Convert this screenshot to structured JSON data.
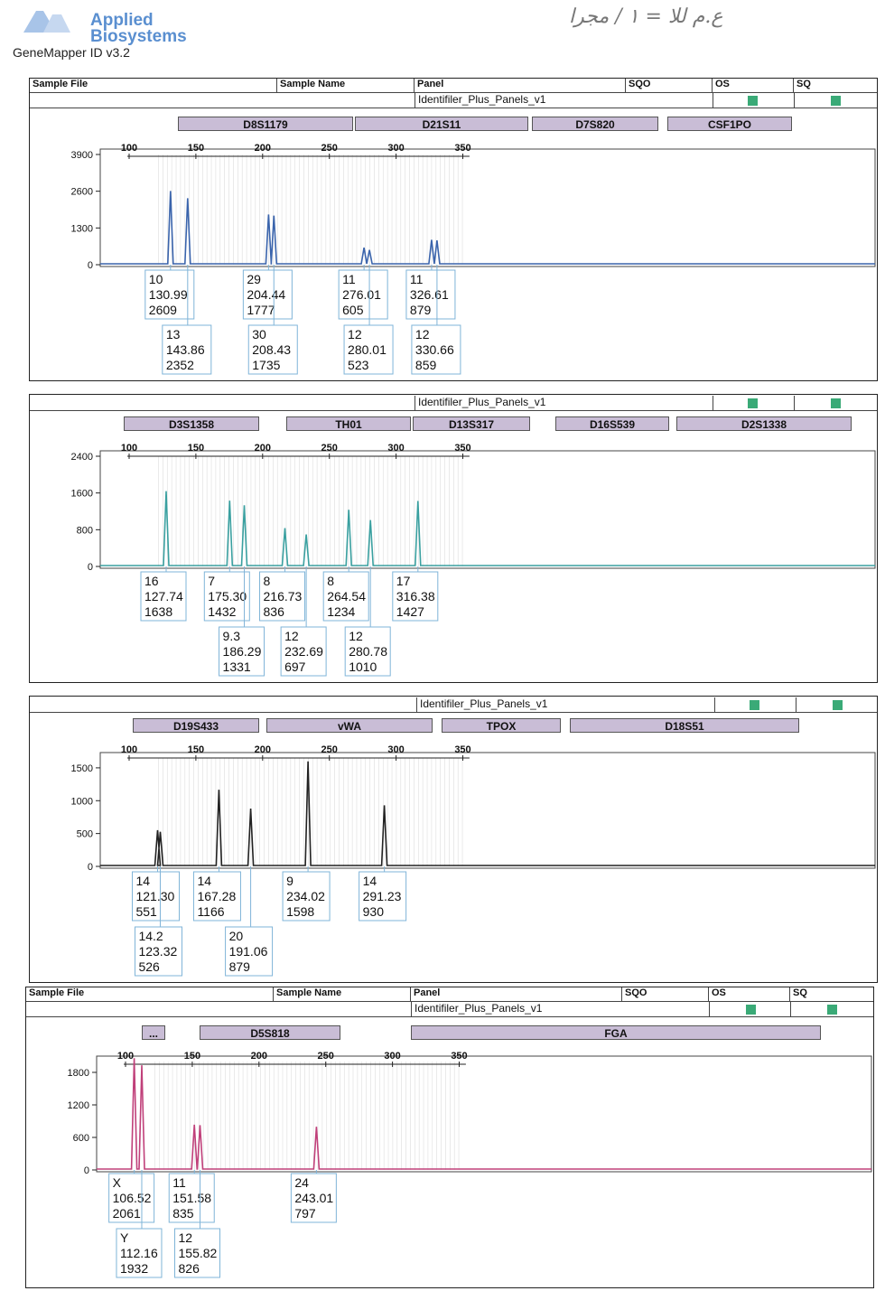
{
  "brand": {
    "line1": "Applied",
    "line2": "Biosystems",
    "product": "GeneMapper ID v3.2"
  },
  "header_labels": {
    "sample_file": "Sample File",
    "sample_name": "Sample Name",
    "panel": "Panel",
    "sqo": "SQO",
    "os": "OS",
    "sq": "SQ"
  },
  "panel_name": "Identifiler_Plus_Panels_v1",
  "flag_color": "#3aaa77",
  "chart_data": [
    {
      "type": "line",
      "channel": "blue",
      "color": "#3a64ac",
      "xlim": [
        100,
        360
      ],
      "x_ticks": [
        100,
        150,
        200,
        250,
        300,
        350
      ],
      "ylim": [
        0,
        3900
      ],
      "y_ticks": [
        0,
        1300,
        2600,
        3900
      ],
      "markers": [
        "D8S1179",
        "D21S11",
        "D7S820",
        "CSF1PO"
      ],
      "peaks": [
        {
          "allele": "10",
          "size": 130.99,
          "height": 2609
        },
        {
          "allele": "13",
          "size": 143.86,
          "height": 2352
        },
        {
          "allele": "29",
          "size": 204.44,
          "height": 1777
        },
        {
          "allele": "30",
          "size": 208.43,
          "height": 1735
        },
        {
          "allele": "11",
          "size": 276.01,
          "height": 605
        },
        {
          "allele": "12",
          "size": 280.01,
          "height": 523
        },
        {
          "allele": "11",
          "size": 326.61,
          "height": 879
        },
        {
          "allele": "12",
          "size": 330.66,
          "height": 859
        }
      ]
    },
    {
      "type": "line",
      "channel": "green",
      "color": "#3aa0a0",
      "xlim": [
        100,
        360
      ],
      "x_ticks": [
        100,
        150,
        200,
        250,
        300,
        350
      ],
      "ylim": [
        0,
        2400
      ],
      "y_ticks": [
        0,
        800,
        1600,
        2400
      ],
      "markers": [
        "D3S1358",
        "TH01",
        "D13S317",
        "D16S539",
        "D2S1338"
      ],
      "peaks": [
        {
          "allele": "16",
          "size": 127.74,
          "height": 1638
        },
        {
          "allele": "7",
          "size": 175.3,
          "height": 1432
        },
        {
          "allele": "9.3",
          "size": 186.29,
          "height": 1331
        },
        {
          "allele": "8",
          "size": 216.73,
          "height": 836
        },
        {
          "allele": "12",
          "size": 232.69,
          "height": 697
        },
        {
          "allele": "8",
          "size": 264.54,
          "height": 1234
        },
        {
          "allele": "12",
          "size": 280.78,
          "height": 1010
        },
        {
          "allele": "17",
          "size": 316.38,
          "height": 1427
        }
      ]
    },
    {
      "type": "line",
      "channel": "yellow",
      "color": "#222222",
      "xlim": [
        100,
        360
      ],
      "x_ticks": [
        100,
        150,
        200,
        250,
        300,
        350
      ],
      "ylim": [
        0,
        1650
      ],
      "y_ticks": [
        0,
        500,
        1000,
        1500
      ],
      "markers": [
        "D19S433",
        "vWA",
        "TPOX",
        "D18S51"
      ],
      "peaks": [
        {
          "allele": "14",
          "size": 121.3,
          "height": 551
        },
        {
          "allele": "14.2",
          "size": 123.32,
          "height": 526
        },
        {
          "allele": "14",
          "size": 167.28,
          "height": 1166
        },
        {
          "allele": "20",
          "size": 191.06,
          "height": 879
        },
        {
          "allele": "9",
          "size": 234.02,
          "height": 1598
        },
        {
          "allele": "14",
          "size": 291.23,
          "height": 930
        }
      ]
    },
    {
      "type": "line",
      "channel": "red",
      "color": "#c0407a",
      "xlim": [
        100,
        360
      ],
      "x_ticks": [
        100,
        150,
        200,
        250,
        300,
        350
      ],
      "ylim": [
        0,
        2000
      ],
      "y_ticks": [
        0,
        600,
        1200,
        1800
      ],
      "markers": [
        "...",
        "D5S818",
        "FGA"
      ],
      "peaks": [
        {
          "allele": "X",
          "size": 106.52,
          "height": 2061
        },
        {
          "allele": "Y",
          "size": 112.16,
          "height": 1932
        },
        {
          "allele": "11",
          "size": 151.58,
          "height": 835
        },
        {
          "allele": "12",
          "size": 155.82,
          "height": 826
        },
        {
          "allele": "24",
          "size": 243.01,
          "height": 797
        }
      ]
    }
  ]
}
